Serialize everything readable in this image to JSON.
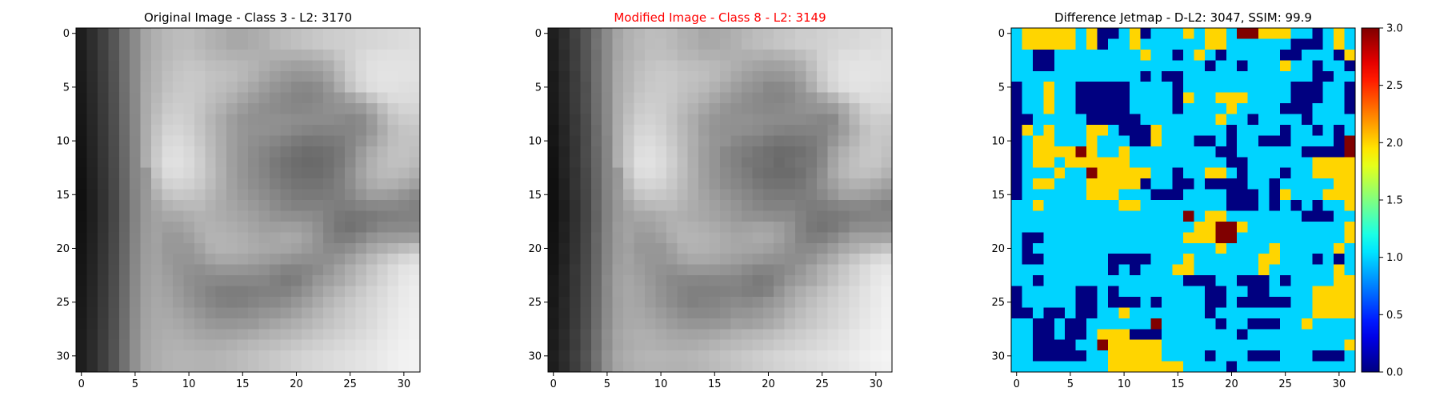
{
  "figure": {
    "background": "#ffffff"
  },
  "chart_data": [
    {
      "type": "heatmap",
      "title": "Original Image - Class 3 - L2: 3170",
      "title_color": "#000000",
      "colormap": "gray",
      "rows": 32,
      "cols": 32,
      "x_ticks": [
        0,
        5,
        10,
        15,
        20,
        25,
        30
      ],
      "y_ticks": [
        0,
        5,
        10,
        15,
        20,
        25,
        30
      ],
      "values_row_major": [
        "1E2E4055728AA5B0B8BCBDB8B2AEA8A8ACB0B8BCC0C4C8CCCED0D4D6D8DADCDE",
        "1E2E4055728AA5B0B8BCBDB8B2AEA8A8ACB0B8BCC0C4C8CCCED0D4D6D8DADCDE",
        "1D2D3F54718AA6B1B9BEC0BCB7B4B1B0B0AFB0B0B0B2B6BCC6D0D8DDDFE0E0E0",
        "1C2C3E53708AA7B3BCC2C5C3BEBCBAB7B3ADA7A3A0A1A5ADBDCED9E0E2E2E2E1",
        "1B2B3D52708AA8B4BFC5C8C7C2C0BDB7B0A69E98949598A3B5CAD8E0E3E3E2E1",
        "1A2A3C516F8AA9B5C1C7C9C7C1BDB8B0A79D959089888C98ACC3D3DDE1E1DFDE",
        "19293B506E89AAB8C5CACAC6BEB8B0A69D958E898584889198A5B3C5D3DBDCDB",
        "18283A4F6D89AABBC9CDCBC4BAB1A69C948F8C8987888B8F92949AA9BDCDD4D5",
        "1727394E6C88ABBFCED1CDC3B6AB9E959190908F8D8C8C8C8A878B9BB1C3CBCD",
        "1626384D6B88ACC3D3D5D0C5B8AC9F9692918F8C8784828384858A98ABBCC4C6",
        "1525374C6A87ACC6D8DAD4C8BAAD9F968F8B86807A7677797C8590A0B0BDC2C2",
        "1424364B6987ADC9DCDED8CCBCAE9F958C857E77716D6E7178869AABB7C0C2BF",
        "1323354A6886AECBDFE0DACEBEAF9F958B8379726D6A6B7079899EB0BAC0C0BB",
        "12223449678696C5DBDDD8CDBFB0A0958C847B746F6D6D727D8EA2B1B9BBB8B1",
        "11213348668597BBD1D4D1C9BCAFA1978E887F79747373777F8D9EABB1B0AAA2",
        "10203247658498B1C3C8C6C1B7ADA29A938C867F7A79797B7F88949E9E9B948C",
        "101F3146648399A6B3B8BABAB2ABA59F99938B858181817F7D7F848889898682",
        "111F3146648399A2A8A9AEB2B0ACA8A49F9993908F8D89807875777A7E808282",
        "1220324765849AA19EA0A6AFB2B0ADA9A49F9E9F9E998F817672777F8789898A",
        "1321334866859BA299999FAAB3B3B1AEA9A5A6A9A79F93847D7E8793999B9D9F",
        "1422344967869CA1989898A2AFB3B2AFABA8A6A5A19A928A898F9AA6ADB4BBC1",
        "1523354A68879DA29995959AA3A8A8A6A29E9A9692908F8F95A0ACB8C3CDD6DB",
        "1624364B69889EA39C95918F939696959390898383868C96A2AEB9C5D0DAE3E6",
        "1725374C6A899FA59F978F8B898887878786807B7E89979FA8B3BFCAD4DDE6EA",
        "1826384D6B8AA0A6A29A918A837E7D7D7F8181828993A0ABB5BFC9D2DAE2E9ED",
        "1927394E6C8BA1A8A59D958D86817F808488898E969FAAB5BEC7CFD6DDE4EAEE",
        "1A283A4F6D8CA2A9A8A39C958E8A8A8B8F94969BA2ABB4BDC5CCD3D9E0E6ECEF",
        "1B293B506E8DA3AAABA8A39D9896969899A0A5AAAFB5BCC3C9CFD5DBE2E8EDF0",
        "1C2A3C516F8EA4ABAEADA9A5A3A2A3A6AAAFB3B6BAC0C6CBD0D5DADFE5EAEEF1",
        "1D2B3D52708FA5ACB0B1AFADACADB0B4B8BBBEC2C6CBCFD3D7DBDFE3E8ECF0F2",
        "1E2C3E537190A6ADB2B4B4B3B3B5B8BCC0C4C8CCD0D4D7DADDE0E3E6EAEEF1F3",
        "1E2C3E537190A6ADB2B4B4B3B3B5B8BCC0C4C8CCD0D4D7DADDE0E3E6EAEEF1F3"
      ]
    },
    {
      "type": "heatmap",
      "title": "Modified Image - Class 8 - L2: 3149",
      "title_color": "#ff0000",
      "colormap": "gray",
      "rows": 32,
      "cols": 32,
      "x_ticks": [
        0,
        5,
        10,
        15,
        20,
        25,
        30
      ],
      "y_ticks": [
        0,
        5,
        10,
        15,
        20,
        25,
        30
      ],
      "values_row_major": [
        "1F2D4156718BA4B1B7BDBCB9B1AFA7A9ABB1B7BDBFC5C7CDCDD1D3D7D7DBDBDF",
        "1D2F3F56738BA6B1B9BDBEB9B3AFA9A9ADB1B9BDC1C5C9CDCFD1D5D7D9DBDDDF",
        "1C2C3E55708BA5B2B8BFBFBDB6B5B0B1AFB0AFB1AFB3B5BDC5D1D7DEDEE1DFE1",
        "1D2D3F54718BA8B4BDC3C6C4BFBDBBB8B4AEA8A4A1A2A6AEBECFDAE1E3E3E3E2",
        "1A2A3C53718BA9B5C0C6C9C8C3C1BEB8B1A79F99959699A4B6CBD9E1E4E4E3E2",
        "1B2B3D50708BAAB6C2C8CAC8C2BEB9B1A89E969188898D99ADC4D4DEE2E2E0DF",
        "1A2A3C516F8AABB9C6CBCBC7BFB9B1A79E968F8A8685899299A6B4C6D4DCDDDC",
        "19293B506E8AABBCCACECCC5BBB2A79D95908D8A88898C9093959BAABECED5D6",
        "1828384D6D89ACC0CFD2CEC4B7AC9F969291918E8C8B8B8B898689A1B6C8CDCC",
        "1525394C6A89ADC4D4D6D1C6B9AD9D9491908E8B8683818283848E9DB0C0C9C8",
        "1626364B6B86ADC7D9DBD5C9BBAEA09592888280797576787B8394A5B5C2C7C4",
        "1323354C6886AEC8DDDFD9CDBDAD9E9488817C75706C6D7077859FB0BCC5C7C1",
        "1224364B6785AFCAE0E1DBCFBFAE9E9488817774716A6F757888A3B5BFC5C5BD",
        "11233348668597C4DCDED9CCBEAF9F948B837C726E6C6C717C8DA7B6BEC0BDB3",
        "10203447658498BAD2D5D2C8BBAEA0968D8780787372727680909FACB2B1ABA3",
        "1121334664839AB2C4C9C7C2B8AEA39B948D87807B7A7A7C808995A2A2A09993",
        "0F1E3045658298A7B4B9BBBBB3ACA6A09A948C868282827E7C7E838789898581",
        "101E3045638298A1A7A8ADB1AFABA7A39E9892918E8C8B827A77797C81838585",
        "1121314664839BA29FA1A7B0B3B1AEAAA5A0A1A3A29D9383787479818C8E8E8F",
        "1220324767849AA39A9AA0ABB4B4B2AFAAA6A7AAA8A094857E7F8894A0A2A2A4",
        "1323334866859BA0979797A1AEB2B1AEAAA7A5A4A099918A8A909BA7AEB5BCC2",
        "1422344967869CA39A96969BA4A9A9A7A39F9B9793918E8E94A0ABB9C4CED7DC",
        "1525374A68879FA29D9692909497979694918A8484878D97A3AFBAC6D1DBE4E7",
        "1826364B698AA0A6A0989089878685868685807A7D88969EA7B2BFCAD4DDE6EB",
        "1925374C6A89A1A7A39B928B8480808081827E7D8293A2ADB6BFC9D2DAE2E9EE",
        "1828384D6B8AA0A7A49C948C85808384888B898D959DA9B4BEC6CED5DCE3E9EF",
        "1B27394E6C8BA1A8A7A29B948D89898A8E9495999FA7B3BCC4CBD2D8DFE5EBF0",
        "1A283A4F6D8CA2A9AAA7A29C9795959798A09FA3A9B0BBC2C8CED4DAE1E7ECF1",
        "1D2B3D52708FA5ACAFAEAAA6A4A3A4A7ABB0B4B7BBC1C7CCD1D6DBE0E6EBEFF2",
        "1C2A3C516F8EA4ABAFB0AEACABACAFB3B7BABDC1C5CACED2D6DADEE2E7EBEFF1",
        "1F2D3F547291A7AEB3B5B5B4B4B6B9BDC1C5C9CDD1D5D8DBDEE1E4E7EBEFF2F4",
        "1D2B3D527090A5ACB1B3B3B2B2B4B7BBBFC3C7CBCFD3D6D9DCDFE2E5E9EDF0F2"
      ]
    },
    {
      "type": "heatmap",
      "title": "Difference Jetmap - D-L2: 3047, SSIM: 99.9",
      "title_color": "#000000",
      "colormap": "jet",
      "vmin": 0,
      "vmax": 3,
      "rows": 32,
      "cols": 32,
      "x_ticks": [
        0,
        5,
        10,
        15,
        20,
        25,
        30
      ],
      "y_ticks": [
        0,
        5,
        10,
        15,
        20,
        25,
        30
      ],
      "colorbar_ticks": [
        "0.0",
        "0.5",
        "1.0",
        "1.5",
        "2.0",
        "2.5",
        "3.0"
      ],
      "values_row_major": [
        "12222212001201112122133222110121",
        "12222212011211111122111111000121",
        "11001111111121101210111110011102",
        "11001111111111111101101112110110",
        "11111111111101001111111111110011",
        "01121100000111101111111111000110",
        "01121100000111102112221111000110",
        "01121100000111101111211110001110",
        "00111110000011111112110111101111",
        "02121112210002111111011110110101",
        "01221112111002111001011000111103",
        "01222232112111111110011111100003",
        "01221222222111111111001111112222",
        "01112113222221101122101110112222",
        "01221112222201100100001101111122",
        "01111112221110001111000102111222",
        "11211111112211111111000101010112",
        "11111111111111113122111111100011",
        "11111111111111111223321111111112",
        "10011111111111112223311111111112",
        "10111111111111111112111121111121",
        "10011111100001112111111221110101",
        "11111111101011122111111211111121",
        "11011111111111110001100010111122",
        "01111100101111111100110011112222",
        "01111100100010111100100000112222",
        "00100100112111111101111111112222",
        "11001001111113111110110001121111",
        "11001001222000111111101111111111",
        "11000011322222111111111111111112",
        "11000001122222111101110001110001",
        "11111111122222221111011111111111"
      ]
    }
  ]
}
